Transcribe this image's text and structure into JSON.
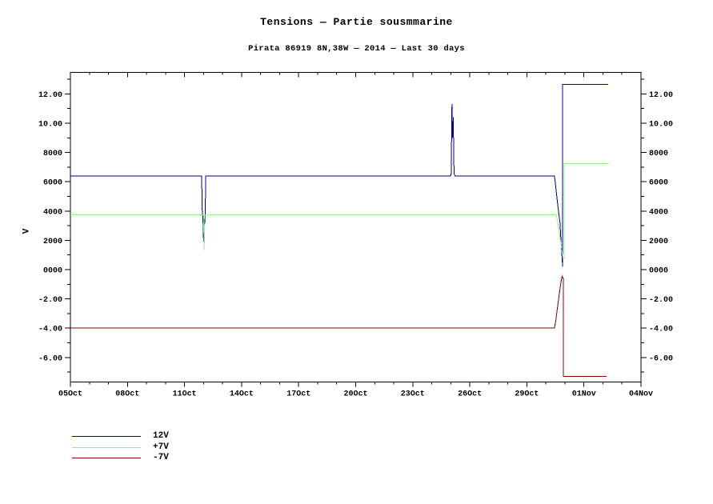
{
  "page": {
    "background": "#ffffff"
  },
  "chart_data": {
    "type": "line",
    "title": "Tensions — Partie sousmmarine",
    "subtitle": "Pirata 86919 8N,38W — 2014 — Last 30 days",
    "ylabel": "V",
    "grid": false,
    "legend_position": "bottom-left",
    "xlim": [
      0,
      30
    ],
    "ylim": [
      -7.68,
      13.47
    ],
    "x_ticks": [
      [
        0,
        "05Oct"
      ],
      [
        3,
        "08Oct"
      ],
      [
        6,
        "11Oct"
      ],
      [
        9,
        "14Oct"
      ],
      [
        12,
        "17Oct"
      ],
      [
        15,
        "20Oct"
      ],
      [
        18,
        "23Oct"
      ],
      [
        21,
        "26Oct"
      ],
      [
        24,
        "29Oct"
      ],
      [
        27,
        "01Nov"
      ],
      [
        30,
        "04Nov"
      ]
    ],
    "y_ticks": [
      [
        12,
        "12.00"
      ],
      [
        10,
        "10.00"
      ],
      [
        8,
        "8000"
      ],
      [
        6,
        "6000"
      ],
      [
        4,
        "4000"
      ],
      [
        2,
        "2000"
      ],
      [
        0,
        "0000"
      ],
      [
        -2,
        "-2.00"
      ],
      [
        -4,
        "-4.00"
      ],
      [
        -6,
        "-6.00"
      ]
    ],
    "series": [
      {
        "name": "12V",
        "color": "#00008b",
        "points": [
          [
            0,
            6.4
          ],
          [
            6.9,
            6.4
          ],
          [
            6.93,
            4.1
          ],
          [
            6.97,
            3.3
          ],
          [
            7.0,
            1.9
          ],
          [
            7.04,
            3.4
          ],
          [
            7.08,
            3.3
          ],
          [
            7.12,
            6.4
          ],
          [
            19.98,
            6.4
          ],
          [
            20.02,
            6.55
          ],
          [
            20.06,
            11.3
          ],
          [
            20.1,
            9.0
          ],
          [
            20.13,
            10.4
          ],
          [
            20.17,
            6.55
          ],
          [
            20.22,
            6.4
          ],
          [
            25.45,
            6.4
          ],
          [
            25.5,
            5.9
          ],
          [
            25.58,
            4.9
          ],
          [
            25.67,
            3.9
          ],
          [
            25.74,
            3.2
          ],
          [
            25.8,
            1.8
          ],
          [
            25.85,
            0.8
          ],
          [
            25.88,
            0.2
          ],
          [
            25.88,
            12.65
          ],
          [
            28.27,
            12.65
          ]
        ]
      },
      {
        "name": "+7V",
        "color": "#90ee90",
        "points": [
          [
            0,
            3.75
          ],
          [
            7.0,
            3.75
          ],
          [
            7.03,
            1.35
          ],
          [
            7.07,
            3.75
          ],
          [
            25.54,
            3.75
          ],
          [
            25.62,
            3.3
          ],
          [
            25.72,
            2.4
          ],
          [
            25.82,
            1.5
          ],
          [
            25.9,
            0.75
          ],
          [
            25.96,
            0.75
          ],
          [
            25.96,
            7.25
          ],
          [
            28.27,
            7.25
          ]
        ]
      },
      {
        "name": "-7V",
        "color": "#8b0000",
        "points": [
          [
            0,
            -4.0
          ],
          [
            25.45,
            -4.0
          ],
          [
            25.53,
            -3.4
          ],
          [
            25.62,
            -2.5
          ],
          [
            25.72,
            -1.5
          ],
          [
            25.8,
            -0.8
          ],
          [
            25.85,
            -0.45
          ],
          [
            25.9,
            -0.6
          ],
          [
            25.92,
            -0.6
          ],
          [
            25.92,
            -7.3
          ],
          [
            28.19,
            -7.3
          ]
        ]
      }
    ]
  }
}
